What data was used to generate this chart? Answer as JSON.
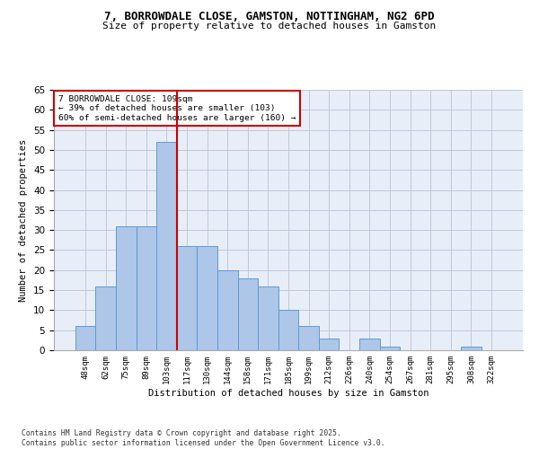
{
  "title_line1": "7, BORROWDALE CLOSE, GAMSTON, NOTTINGHAM, NG2 6PD",
  "title_line2": "Size of property relative to detached houses in Gamston",
  "xlabel": "Distribution of detached houses by size in Gamston",
  "ylabel": "Number of detached properties",
  "bar_labels": [
    "48sqm",
    "62sqm",
    "75sqm",
    "89sqm",
    "103sqm",
    "117sqm",
    "130sqm",
    "144sqm",
    "158sqm",
    "171sqm",
    "185sqm",
    "199sqm",
    "212sqm",
    "226sqm",
    "240sqm",
    "254sqm",
    "267sqm",
    "281sqm",
    "295sqm",
    "308sqm",
    "322sqm"
  ],
  "bar_values": [
    6,
    16,
    31,
    31,
    52,
    26,
    26,
    20,
    18,
    16,
    10,
    6,
    3,
    0,
    3,
    1,
    0,
    0,
    0,
    1,
    0
  ],
  "bar_color": "#aec6e8",
  "bar_edge_color": "#5b9bd5",
  "vline_x": 4.5,
  "vline_color": "#cc0000",
  "annotation_text": "7 BORROWDALE CLOSE: 109sqm\n← 39% of detached houses are smaller (103)\n60% of semi-detached houses are larger (160) →",
  "annotation_box_color": "#ffffff",
  "annotation_box_edge_color": "#cc0000",
  "ylim": [
    0,
    65
  ],
  "yticks": [
    0,
    5,
    10,
    15,
    20,
    25,
    30,
    35,
    40,
    45,
    50,
    55,
    60,
    65
  ],
  "grid_color": "#c0c8d8",
  "background_color": "#e8eef8",
  "footer_text": "Contains HM Land Registry data © Crown copyright and database right 2025.\nContains public sector information licensed under the Open Government Licence v3.0."
}
